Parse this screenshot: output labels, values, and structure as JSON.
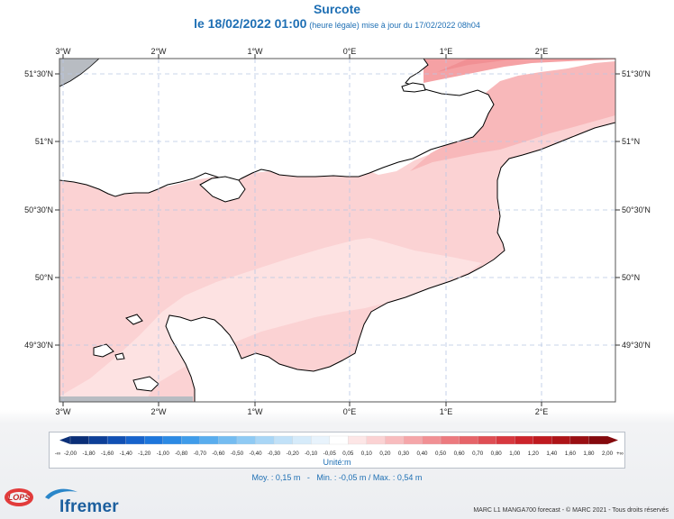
{
  "header": {
    "title": "Surcote",
    "date_label": "le 18/02/2022 01:00",
    "legal_time_note": "(heure légale) mise à jour du 17/02/2022 08h04"
  },
  "map": {
    "lon_labels": [
      "3°W",
      "2°W",
      "1°W",
      "0°E",
      "1°E",
      "2°E"
    ],
    "lat_labels": [
      "51°30'N",
      "51°N",
      "50°30'N",
      "50°N",
      "49°30'N"
    ],
    "colors": {
      "sea_low": "#fde2e2",
      "sea_mid": "#fbd2d3",
      "sea_high": "#f8b8ba",
      "sea_top": "#f5a1a4",
      "land": "#ffffff",
      "land_grey": "#b8bcc2",
      "grid": "#b7c7e4"
    }
  },
  "legend": {
    "min_marker": "-∞",
    "max_marker": "+∞",
    "ticks": [
      "-2,00",
      "-1,80",
      "-1,60",
      "-1,40",
      "-1,20",
      "-1,00",
      "-0,80",
      "-0,70",
      "-0,60",
      "-0,50",
      "-0,40",
      "-0,30",
      "-0,20",
      "-0,10",
      "-0,05",
      "0,05",
      "0,10",
      "0,20",
      "0,30",
      "0,40",
      "0,50",
      "0,60",
      "0,70",
      "0,80",
      "1,00",
      "1,20",
      "1,40",
      "1,60",
      "1,80",
      "2,00"
    ],
    "colors": [
      "#0b2f78",
      "#0d3f98",
      "#1150b4",
      "#1763cc",
      "#1d76dc",
      "#2c8ae4",
      "#3f9cea",
      "#59adee",
      "#74bcf1",
      "#8fcaf4",
      "#a9d6f6",
      "#c1e1f8",
      "#d6ebfa",
      "#e8f3fc",
      "#ffffff",
      "#fde6e6",
      "#fbd2d3",
      "#f8bcbe",
      "#f5a6a9",
      "#f19094",
      "#ec7a7f",
      "#e66469",
      "#df4e54",
      "#d7383f",
      "#cc242b",
      "#bf1a20",
      "#ae1418",
      "#9a0f13",
      "#84090d"
    ],
    "unit": "Unité:m"
  },
  "stats": {
    "text": "Moy. : 0,15 m   -   Min. : -0,05 m / Max. : 0,54 m"
  },
  "branding": {
    "lops": "LOPS",
    "ifremer": "Ifremer",
    "footer": "MARC L1 MANGA700 forecast - © MARC 2021 - Tous droits réservés"
  }
}
